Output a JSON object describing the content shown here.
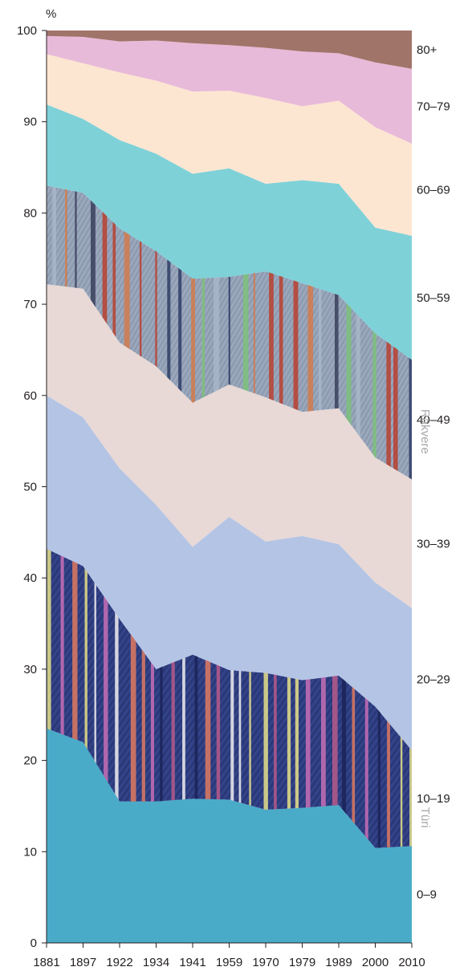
{
  "chart_data": {
    "type": "area",
    "stacked": true,
    "ylabel": "%",
    "ylim": [
      0,
      100
    ],
    "yticks": [
      0,
      10,
      20,
      30,
      40,
      50,
      60,
      70,
      80,
      90,
      100
    ],
    "categories": [
      "1881",
      "1897",
      "1922",
      "1934",
      "1941",
      "1959",
      "1970",
      "1979",
      "1989",
      "2000",
      "2010"
    ],
    "series": [
      {
        "name": "0–9",
        "color": "#4aabc8",
        "values": [
          23.5,
          22.0,
          15.5,
          15.5,
          15.8,
          15.7,
          14.6,
          14.8,
          15.1,
          10.4,
          10.6
        ]
      },
      {
        "name": "10–19",
        "color": "#2d3b7c",
        "pattern": "woven-stripes-turi",
        "values": [
          19.7,
          19.3,
          20.0,
          14.5,
          15.8,
          14.2,
          15.0,
          14.0,
          14.2,
          15.5,
          10.5
        ]
      },
      {
        "name": "20–29",
        "color": "#b4c4e5",
        "values": [
          16.8,
          16.3,
          16.5,
          18.0,
          11.8,
          16.8,
          14.4,
          15.8,
          14.4,
          13.6,
          15.6
        ]
      },
      {
        "name": "30–39",
        "color": "#e8d9d6",
        "values": [
          12.2,
          14.1,
          13.8,
          15.2,
          15.8,
          14.5,
          15.8,
          13.6,
          14.9,
          13.7,
          14.1
        ]
      },
      {
        "name": "40–49",
        "color": "#8e9bb0",
        "pattern": "woven-stripes-rakvere",
        "values": [
          10.8,
          10.5,
          12.5,
          12.6,
          13.6,
          11.8,
          13.8,
          14.1,
          12.4,
          13.6,
          13.1
        ]
      },
      {
        "name": "50–59",
        "color": "#7fd1d8",
        "values": [
          8.9,
          8.1,
          9.7,
          10.7,
          11.5,
          11.9,
          9.6,
          11.3,
          12.2,
          11.6,
          13.6
        ]
      },
      {
        "name": "60–69",
        "color": "#fde6d1",
        "values": [
          5.5,
          6.1,
          7.4,
          8.0,
          9.0,
          8.5,
          9.4,
          8.1,
          9.1,
          11.0,
          10.1
        ]
      },
      {
        "name": "70–79",
        "color": "#e8bad9",
        "values": [
          2.0,
          2.9,
          3.4,
          4.4,
          5.3,
          5.0,
          5.5,
          6.0,
          5.2,
          7.1,
          8.2
        ]
      },
      {
        "name": "80+",
        "color": "#a1746a",
        "values": [
          0.5,
          0.6,
          1.1,
          1.0,
          1.2,
          1.6,
          1.9,
          2.2,
          2.4,
          2.6,
          4.2
        ]
      }
    ],
    "band_labels": {
      "0–9": "0–9",
      "10–19": "10–19",
      "20–29": "20–29",
      "30–39": "30–39",
      "40–49": "40–49",
      "50–59": "50–59",
      "60–69": "60–69",
      "70–79": "70–79",
      "80+": "80+"
    },
    "fabric_labels": {
      "10–19": "Türi",
      "40–49": "Rakvere"
    },
    "grid": false,
    "legend": "right"
  }
}
